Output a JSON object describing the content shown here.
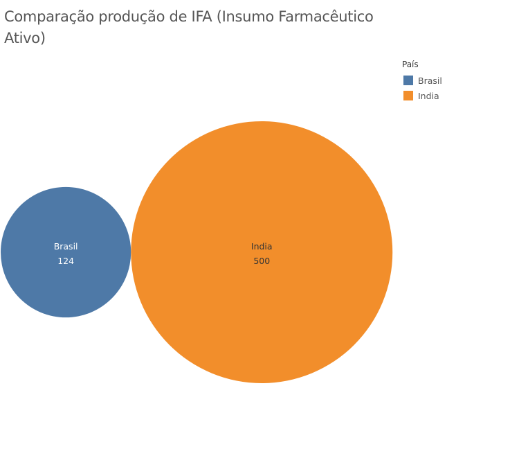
{
  "title": "Comparação produção de IFA (Insumo Farmacêutico Ativo)",
  "legend": {
    "title": "País",
    "items": [
      {
        "label": "Brasil",
        "color": "#4e79a7"
      },
      {
        "label": "India",
        "color": "#f28e2b"
      }
    ]
  },
  "chart_data": {
    "type": "bubble",
    "title": "Comparação produção de IFA (Insumo Farmacêutico Ativo)",
    "legend_title": "País",
    "legend_position": "top-right",
    "size_encoding": "area",
    "points": [
      {
        "label": "Brasil",
        "value": 124,
        "color": "#4e79a7",
        "label_color": "#ffffff"
      },
      {
        "label": "India",
        "value": 500,
        "color": "#f28e2b",
        "label_color": "#333333"
      }
    ]
  }
}
